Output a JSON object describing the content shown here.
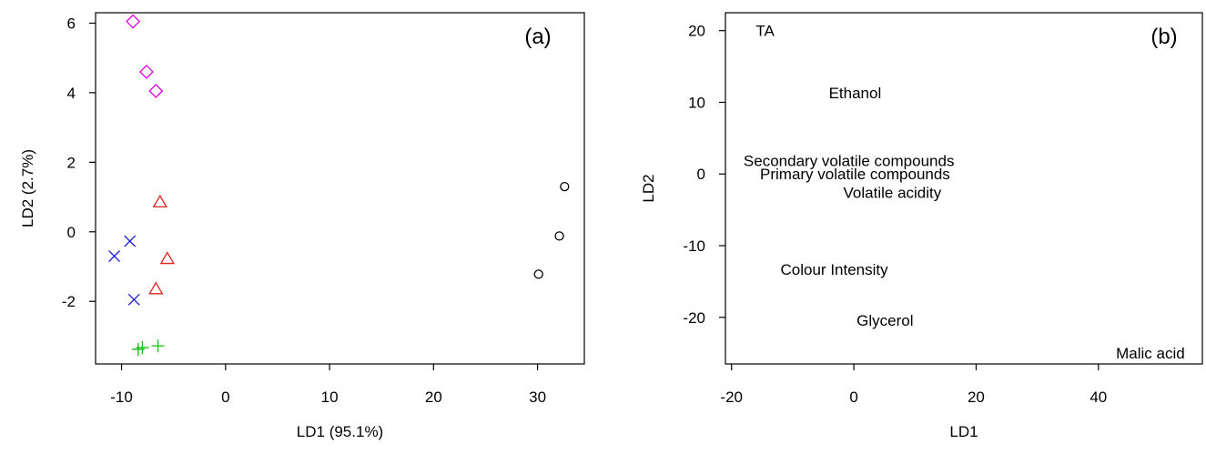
{
  "chart_data": [
    {
      "type": "scatter",
      "panel_label": "(a)",
      "xlabel": "LD1 (95.1%)",
      "ylabel": "LD2 (2.7%)",
      "xlim": [
        -12.5,
        34.5
      ],
      "ylim": [
        -3.8,
        6.3
      ],
      "xticks": [
        -10,
        0,
        10,
        20,
        30
      ],
      "xtick_labels": [
        "-10",
        "0",
        "10",
        "20",
        "30"
      ],
      "yticks": [
        -2,
        0,
        2,
        4,
        6
      ],
      "ytick_labels": [
        "-2",
        "0",
        "2",
        "4",
        "6"
      ],
      "grid": false,
      "series": [
        {
          "marker": "diamond",
          "color": "#e000e0",
          "points": [
            [
              -8.9,
              6.05
            ],
            [
              -7.6,
              4.6
            ],
            [
              -6.7,
              4.05
            ]
          ]
        },
        {
          "marker": "triangle",
          "color": "#e02020",
          "points": [
            [
              -6.3,
              0.85
            ],
            [
              -5.6,
              -0.78
            ],
            [
              -6.7,
              -1.65
            ]
          ]
        },
        {
          "marker": "cross",
          "color": "#1515e0",
          "points": [
            [
              -10.7,
              -0.7
            ],
            [
              -9.2,
              -0.27
            ],
            [
              -8.8,
              -1.95
            ]
          ]
        },
        {
          "marker": "plus",
          "color": "#10c010",
          "points": [
            [
              -8.4,
              -3.38
            ],
            [
              -8.0,
              -3.33
            ],
            [
              -6.5,
              -3.28
            ]
          ]
        },
        {
          "marker": "circle",
          "color": "#000000",
          "points": [
            [
              32.6,
              1.3
            ],
            [
              32.1,
              -0.12
            ],
            [
              30.1,
              -1.22
            ]
          ]
        }
      ]
    },
    {
      "type": "scatter",
      "panel_label": "(b)",
      "xlabel": "LD1",
      "ylabel": "LD2",
      "xlim": [
        -21,
        57
      ],
      "ylim": [
        -26.5,
        22.5
      ],
      "xticks": [
        -20,
        0,
        20,
        40
      ],
      "xtick_labels": [
        "-20",
        "0",
        "20",
        "40"
      ],
      "yticks": [
        -20,
        -10,
        0,
        10,
        20
      ],
      "ytick_labels": [
        "-20",
        "-10",
        "0",
        "10",
        "20"
      ],
      "grid": false,
      "labels": [
        {
          "text": "TA",
          "x": -14.5,
          "y": 20.0
        },
        {
          "text": "Ethanol",
          "x": 0.2,
          "y": 11.3
        },
        {
          "text": "Secondary volatile compounds",
          "x": -0.8,
          "y": 1.9
        },
        {
          "text": "Primary volatile compounds",
          "x": 0.2,
          "y": 0.0
        },
        {
          "text": "Volatile acidity",
          "x": 6.3,
          "y": -2.6
        },
        {
          "text": "Colour Intensity",
          "x": -3.2,
          "y": -13.3
        },
        {
          "text": "Glycerol",
          "x": 5.1,
          "y": -20.4
        },
        {
          "text": "Malic acid",
          "x": 48.5,
          "y": -25.0
        }
      ]
    }
  ]
}
